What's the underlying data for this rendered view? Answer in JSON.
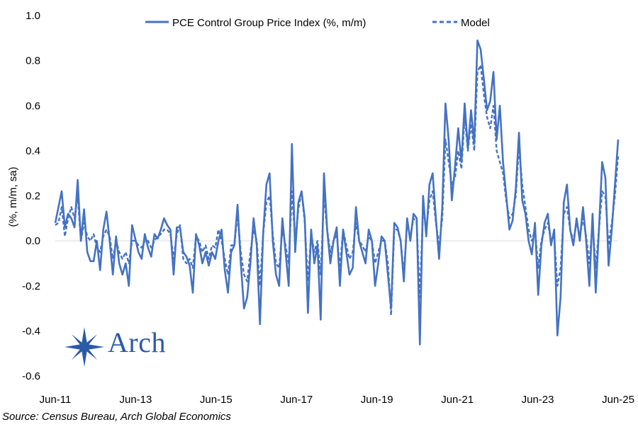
{
  "chart_data": {
    "type": "line",
    "title": "",
    "xlabel": "",
    "ylabel": "(%, m/m, sa)",
    "ylim": [
      -0.6,
      1.0
    ],
    "yticks": [
      "1.0",
      "0.8",
      "0.6",
      "0.4",
      "0.2",
      "0.0",
      "-0.2",
      "-0.4",
      "-0.6"
    ],
    "xticks": [
      "Jun-11",
      "Jun-13",
      "Jun-15",
      "Jun-17",
      "Jun-19",
      "Jun-21",
      "Jun-23",
      "Jun-25"
    ],
    "x_start": "Jun-11",
    "x_end": "Jun-25",
    "legend_position": "top",
    "series": [
      {
        "name": "PCE Control Group Price Index (%, m/m)",
        "style": "solid",
        "color": "#4472c4",
        "values": [
          0.08,
          0.15,
          0.22,
          0.06,
          0.12,
          0.1,
          0.06,
          0.27,
          0.0,
          0.14,
          -0.05,
          -0.09,
          -0.09,
          0.0,
          -0.13,
          0.05,
          0.13,
          0.0,
          -0.15,
          0.02,
          -0.1,
          -0.15,
          -0.1,
          -0.2,
          0.07,
          0.01,
          -0.05,
          -0.08,
          0.03,
          -0.03,
          -0.07,
          0.03,
          0.01,
          0.05,
          0.1,
          0.07,
          0.05,
          -0.15,
          0.06,
          0.06,
          -0.05,
          -0.07,
          -0.11,
          -0.23,
          0.03,
          -0.02,
          -0.1,
          -0.05,
          -0.11,
          -0.05,
          -0.08,
          0.0,
          0.05,
          -0.13,
          -0.23,
          -0.05,
          -0.02,
          0.16,
          -0.1,
          -0.3,
          -0.25,
          -0.1,
          0.1,
          -0.02,
          -0.37,
          0.03,
          0.25,
          0.3,
          0.0,
          -0.15,
          -0.2,
          0.1,
          -0.05,
          -0.2,
          0.43,
          -0.05,
          0.17,
          0.22,
          0.1,
          -0.32,
          0.05,
          -0.1,
          -0.02,
          -0.35,
          0.3,
          0.05,
          -0.1,
          0.0,
          0.06,
          -0.2,
          0.05,
          -0.05,
          -0.15,
          -0.12,
          0.15,
          0.0,
          -0.05,
          -0.1,
          0.05,
          0.0,
          -0.2,
          -0.1,
          0.02,
          0.0,
          -0.15,
          -0.3,
          0.08,
          0.06,
          0.0,
          -0.18,
          0.1,
          0.0,
          0.12,
          0.1,
          -0.46,
          0.2,
          0.02,
          0.25,
          0.3,
          0.1,
          -0.08,
          0.15,
          0.61,
          0.45,
          0.18,
          0.33,
          0.5,
          0.35,
          0.61,
          0.41,
          0.58,
          0.43,
          0.89,
          0.85,
          0.72,
          0.58,
          0.62,
          0.75,
          0.45,
          0.6,
          0.35,
          0.2,
          0.05,
          0.09,
          0.23,
          0.48,
          0.18,
          0.12,
          0.0,
          -0.06,
          0.08,
          -0.24,
          -0.02,
          0.08,
          0.12,
          -0.02,
          0.05,
          -0.42,
          -0.25,
          0.17,
          0.25,
          0.05,
          -0.02,
          0.1,
          0.0,
          0.15,
          0.0,
          -0.2,
          0.12,
          -0.23,
          0.05,
          0.35,
          0.28,
          -0.11,
          0.05,
          0.25,
          0.45
        ]
      },
      {
        "name": "Model",
        "style": "dashed",
        "color": "#4472c4",
        "values": [
          0.07,
          0.08,
          0.15,
          0.02,
          0.1,
          0.15,
          0.1,
          0.2,
          0.0,
          0.08,
          0.02,
          0.0,
          0.03,
          -0.03,
          -0.05,
          0.02,
          0.05,
          0.02,
          -0.08,
          0.0,
          -0.05,
          -0.08,
          -0.05,
          -0.1,
          0.0,
          0.0,
          -0.02,
          -0.03,
          0.0,
          0.0,
          -0.03,
          0.0,
          0.02,
          0.03,
          0.05,
          0.05,
          0.03,
          -0.08,
          0.03,
          0.07,
          -0.08,
          -0.1,
          -0.08,
          -0.12,
          0.02,
          0.0,
          -0.05,
          -0.02,
          -0.08,
          -0.02,
          -0.03,
          0.05,
          0.0,
          -0.08,
          -0.15,
          -0.02,
          -0.02,
          0.12,
          -0.05,
          -0.15,
          -0.18,
          -0.05,
          0.05,
          0.0,
          -0.2,
          0.03,
          0.17,
          0.2,
          0.03,
          -0.1,
          -0.12,
          0.05,
          -0.02,
          -0.1,
          0.22,
          0.0,
          0.14,
          0.22,
          0.08,
          -0.18,
          0.03,
          -0.05,
          0.0,
          -0.15,
          0.2,
          0.05,
          -0.05,
          0.0,
          0.03,
          -0.12,
          0.05,
          -0.02,
          -0.08,
          -0.05,
          0.08,
          0.0,
          -0.02,
          -0.05,
          0.02,
          0.0,
          -0.1,
          -0.05,
          0.0,
          0.0,
          -0.1,
          -0.33,
          0.05,
          0.05,
          0.0,
          -0.15,
          0.08,
          0.02,
          0.1,
          0.08,
          -0.25,
          0.15,
          0.05,
          0.18,
          0.22,
          0.08,
          -0.02,
          0.1,
          0.45,
          0.35,
          0.25,
          0.28,
          0.4,
          0.32,
          0.55,
          0.4,
          0.52,
          0.4,
          0.75,
          0.78,
          0.65,
          0.55,
          0.5,
          0.6,
          0.4,
          0.35,
          0.3,
          0.18,
          0.1,
          0.12,
          0.2,
          0.42,
          0.25,
          0.15,
          0.05,
          0.0,
          0.05,
          -0.12,
          0.0,
          0.05,
          0.08,
          0.0,
          0.02,
          -0.2,
          -0.12,
          0.12,
          0.15,
          0.05,
          0.0,
          0.08,
          0.02,
          0.1,
          0.02,
          -0.1,
          0.08,
          -0.12,
          0.05,
          0.22,
          0.2,
          -0.02,
          0.08,
          0.2,
          0.38
        ]
      }
    ]
  },
  "logo": {
    "text": "Arch"
  },
  "source": "Source: Census Bureau, Arch Global Economics"
}
